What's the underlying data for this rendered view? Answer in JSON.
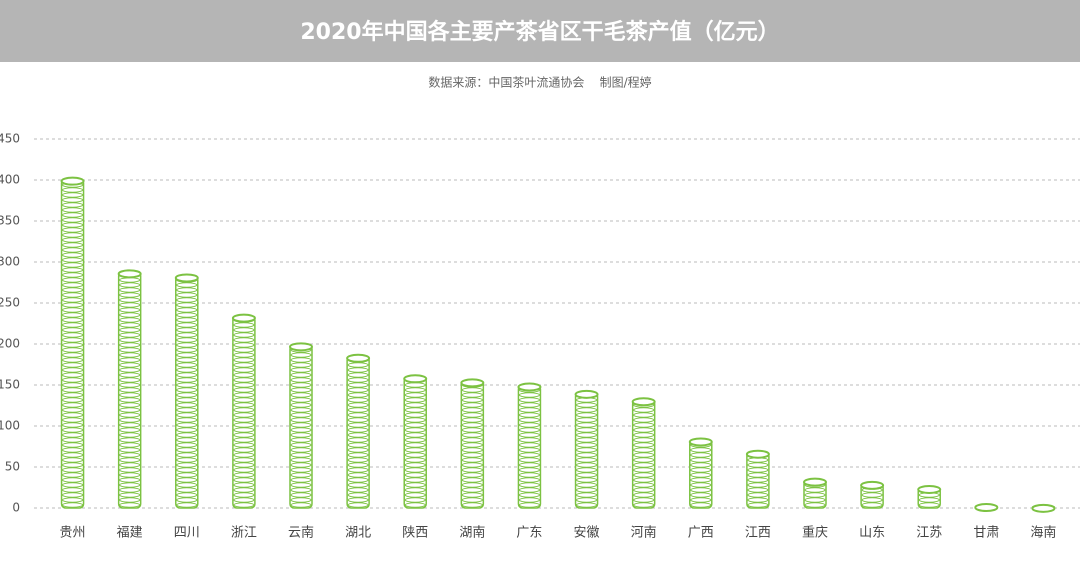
{
  "chart_data": {
    "type": "bar",
    "title": "2020年中国各主要产茶省区干毛茶产值（亿元）",
    "subtitle": "数据来源：中国茶叶流通协会    制图/程婷",
    "categories": [
      "贵州",
      "福建",
      "四川",
      "浙江",
      "云南",
      "湖北",
      "陕西",
      "湖南",
      "广东",
      "安徽",
      "河南",
      "广西",
      "江西",
      "重庆",
      "山东",
      "江苏",
      "甘肃",
      "海南"
    ],
    "values": [
      401,
      288,
      283,
      234,
      199,
      185,
      160,
      155,
      150,
      141,
      132,
      83,
      68,
      34,
      30,
      25,
      3,
      2
    ],
    "color": "#7cc242",
    "ylim": [
      0,
      450
    ],
    "yticks": [
      0,
      50,
      100,
      150,
      200,
      250,
      300,
      350,
      400,
      450
    ],
    "grid": true
  }
}
